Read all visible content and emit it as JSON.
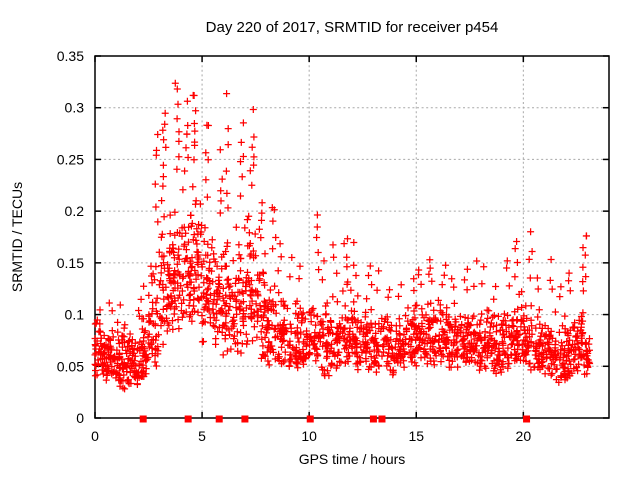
{
  "chart_data": {
    "type": "scatter",
    "title": "Day 220 of 2017, SRMTID for receiver p454",
    "xlabel": "GPS time / hours",
    "ylabel": "SRMTID / TECUs",
    "xlim": [
      0,
      24
    ],
    "ylim": [
      0,
      0.35
    ],
    "x_ticks": [
      0,
      5,
      10,
      15,
      20
    ],
    "x_tick_labels": [
      "0",
      "5",
      "10",
      "15",
      "20"
    ],
    "y_ticks": [
      0,
      0.05,
      0.1,
      0.15,
      0.2,
      0.25,
      0.3,
      0.35
    ],
    "y_tick_labels": [
      "0",
      "0.05",
      "0.1",
      "0.15",
      "0.2",
      "0.25",
      "0.3",
      "0.35"
    ],
    "grid": true,
    "grid_style": "dashed",
    "grid_color": "#a8a8a8",
    "axis_color": "#000000",
    "legend": "none",
    "series": [
      {
        "name": "srmtid-scatter",
        "marker": "plus",
        "color": "#ff0000",
        "point_style": "cluster-bins",
        "y_max_observed": 0.335,
        "x_data_end_hr": 23.15,
        "bins_format": [
          "x_start_hr",
          "x_end_hr",
          "n_points",
          "y_band_low",
          "y_band_high",
          "n_spike_points",
          "spike_y_max"
        ],
        "bins": [
          [
            0.0,
            0.5,
            46,
            0.04,
            0.1,
            1,
            0.105
          ],
          [
            0.5,
            1.0,
            46,
            0.035,
            0.095,
            2,
            0.115
          ],
          [
            1.0,
            1.5,
            48,
            0.028,
            0.095,
            1,
            0.11
          ],
          [
            1.5,
            2.0,
            46,
            0.028,
            0.09,
            0,
            0.09
          ],
          [
            2.0,
            2.5,
            42,
            0.038,
            0.105,
            2,
            0.13
          ],
          [
            2.5,
            3.0,
            42,
            0.05,
            0.17,
            6,
            0.3
          ],
          [
            3.0,
            3.5,
            46,
            0.065,
            0.215,
            8,
            0.31
          ],
          [
            3.5,
            4.0,
            46,
            0.08,
            0.23,
            8,
            0.335
          ],
          [
            4.0,
            4.5,
            46,
            0.08,
            0.23,
            7,
            0.31
          ],
          [
            4.5,
            5.0,
            46,
            0.09,
            0.24,
            8,
            0.335
          ],
          [
            5.0,
            5.5,
            42,
            0.07,
            0.2,
            6,
            0.3
          ],
          [
            5.5,
            6.0,
            42,
            0.06,
            0.185,
            5,
            0.26
          ],
          [
            6.0,
            6.5,
            42,
            0.06,
            0.18,
            6,
            0.32
          ],
          [
            6.5,
            7.0,
            42,
            0.06,
            0.2,
            6,
            0.3
          ],
          [
            7.0,
            7.5,
            42,
            0.06,
            0.215,
            7,
            0.3
          ],
          [
            7.5,
            8.0,
            40,
            0.05,
            0.165,
            5,
            0.22
          ],
          [
            8.0,
            8.5,
            40,
            0.05,
            0.15,
            5,
            0.22
          ],
          [
            8.5,
            9.0,
            40,
            0.048,
            0.13,
            3,
            0.17
          ],
          [
            9.0,
            9.5,
            38,
            0.045,
            0.12,
            2,
            0.16
          ],
          [
            9.5,
            10.0,
            38,
            0.045,
            0.12,
            2,
            0.15
          ],
          [
            10.0,
            10.5,
            38,
            0.05,
            0.13,
            5,
            0.21
          ],
          [
            10.5,
            11.0,
            38,
            0.04,
            0.12,
            2,
            0.155
          ],
          [
            11.0,
            11.5,
            38,
            0.045,
            0.125,
            3,
            0.175
          ],
          [
            11.5,
            12.0,
            38,
            0.045,
            0.135,
            4,
            0.18
          ],
          [
            12.0,
            12.5,
            38,
            0.045,
            0.125,
            3,
            0.17
          ],
          [
            12.5,
            13.0,
            38,
            0.045,
            0.12,
            3,
            0.155
          ],
          [
            13.0,
            13.5,
            36,
            0.04,
            0.11,
            2,
            0.145
          ],
          [
            13.5,
            14.0,
            36,
            0.04,
            0.105,
            2,
            0.13
          ],
          [
            14.0,
            14.5,
            38,
            0.045,
            0.11,
            2,
            0.13
          ],
          [
            14.5,
            15.0,
            38,
            0.05,
            0.115,
            2,
            0.135
          ],
          [
            15.0,
            15.5,
            38,
            0.05,
            0.12,
            3,
            0.15
          ],
          [
            15.5,
            16.0,
            38,
            0.05,
            0.125,
            4,
            0.155
          ],
          [
            16.0,
            16.5,
            38,
            0.05,
            0.12,
            3,
            0.15
          ],
          [
            16.5,
            17.0,
            38,
            0.045,
            0.115,
            2,
            0.14
          ],
          [
            17.0,
            17.5,
            38,
            0.05,
            0.115,
            3,
            0.145
          ],
          [
            17.5,
            18.0,
            38,
            0.045,
            0.11,
            2,
            0.155
          ],
          [
            18.0,
            18.5,
            38,
            0.045,
            0.11,
            2,
            0.15
          ],
          [
            18.5,
            19.0,
            38,
            0.04,
            0.105,
            2,
            0.13
          ],
          [
            19.0,
            19.5,
            38,
            0.045,
            0.115,
            3,
            0.16
          ],
          [
            19.5,
            20.0,
            38,
            0.05,
            0.125,
            4,
            0.18
          ],
          [
            20.0,
            20.5,
            38,
            0.045,
            0.12,
            4,
            0.19
          ],
          [
            20.5,
            21.0,
            38,
            0.04,
            0.11,
            2,
            0.14
          ],
          [
            21.0,
            21.5,
            40,
            0.038,
            0.11,
            3,
            0.155
          ],
          [
            21.5,
            22.0,
            40,
            0.033,
            0.105,
            2,
            0.13
          ],
          [
            22.0,
            22.5,
            42,
            0.038,
            0.11,
            3,
            0.15
          ],
          [
            22.5,
            23.0,
            42,
            0.04,
            0.115,
            8,
            0.188
          ],
          [
            23.0,
            23.15,
            10,
            0.045,
            0.095,
            0,
            0.095
          ]
        ]
      },
      {
        "name": "event-flags",
        "marker": "filled-square",
        "color": "#ff0000",
        "y": 0,
        "x": [
          2.25,
          4.35,
          5.8,
          7.0,
          10.05,
          13.0,
          13.4,
          20.15
        ]
      }
    ]
  }
}
